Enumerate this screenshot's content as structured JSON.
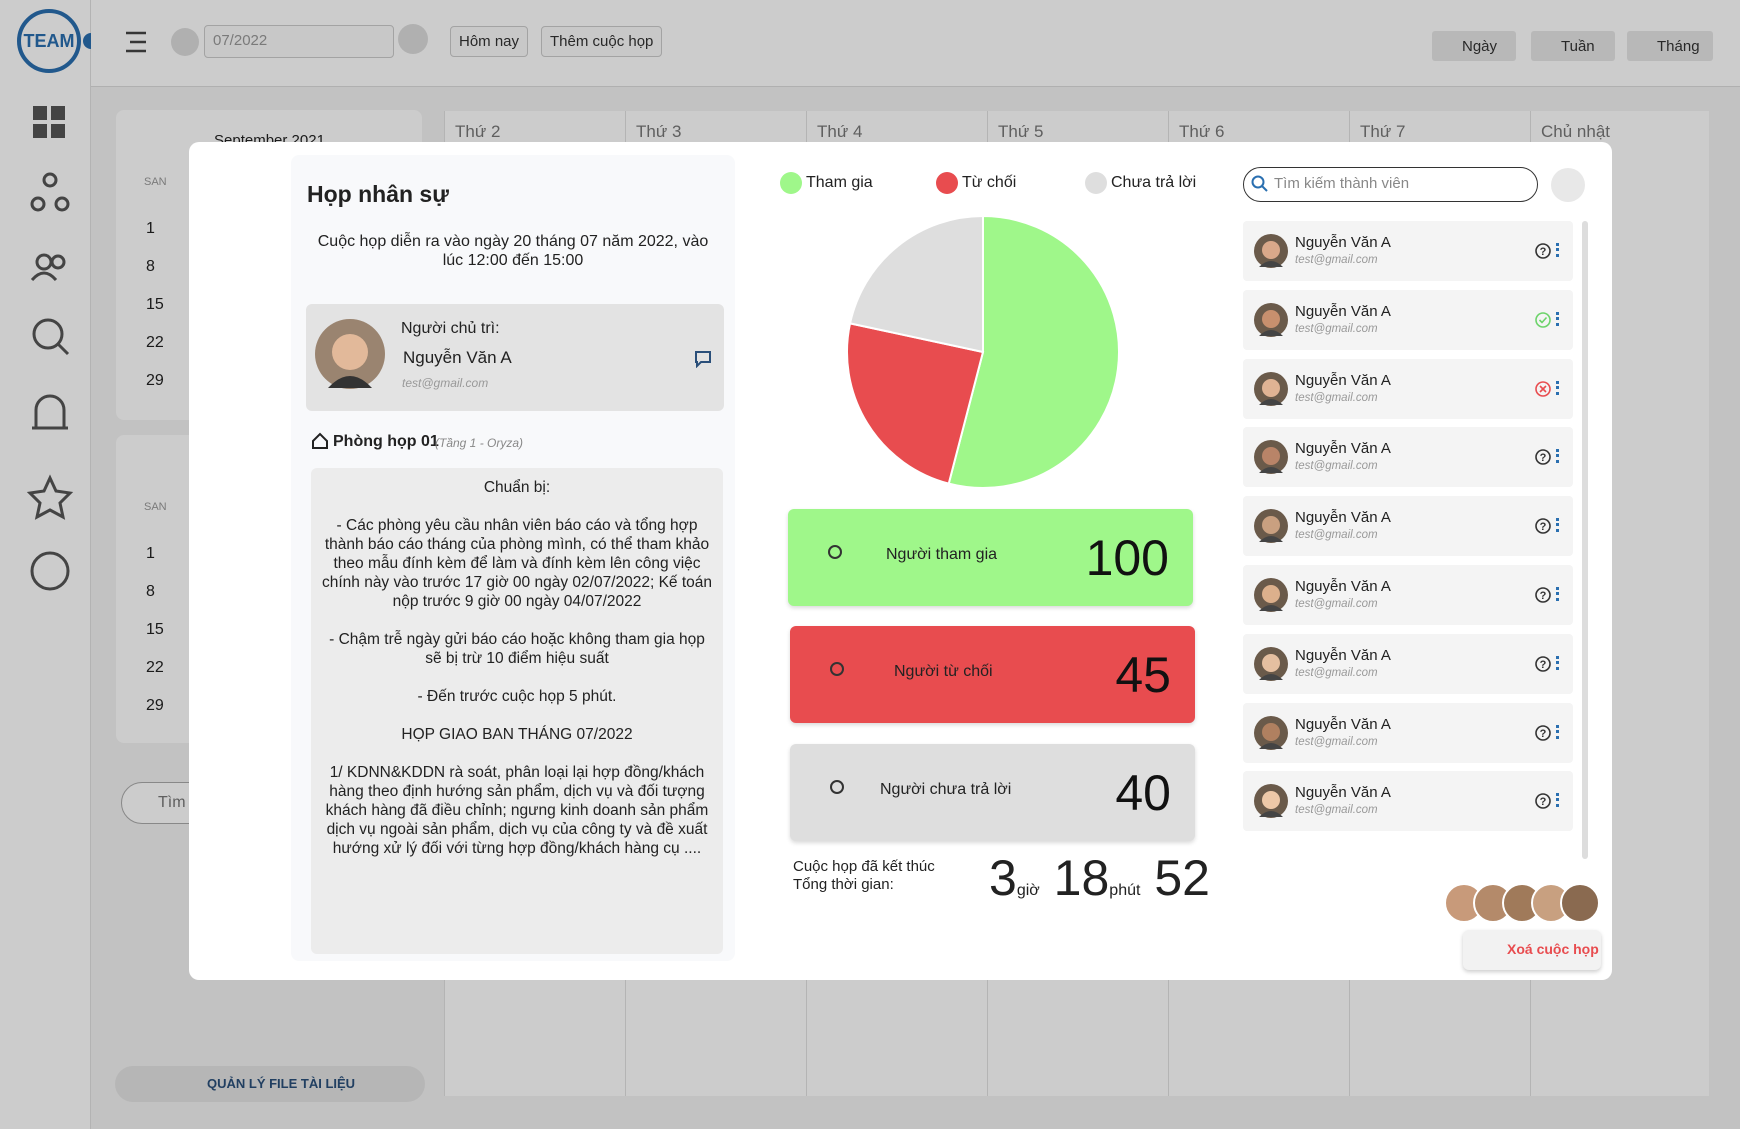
{
  "toolbar": {
    "date": "07/2022",
    "today": "Hôm nay",
    "add_meeting": "Thêm cuộc họp",
    "views": [
      "Ngày",
      "Tuần",
      "Tháng"
    ]
  },
  "calendar": {
    "weekdays": [
      "Thứ 2",
      "Thứ 3",
      "Thứ 4",
      "Thứ 5",
      "Thứ 6",
      "Thứ 7",
      "Chủ nhật"
    ],
    "mini_calendars": [
      {
        "month": "September 2021",
        "weekday": "SAN",
        "days": [
          1,
          8,
          15,
          22,
          29
        ]
      },
      {
        "weekday": "SAN",
        "days": [
          1,
          8,
          15,
          22,
          29
        ]
      }
    ],
    "search": "Tìm",
    "file_button": "QUẢN LÝ FILE TÀI LIỆU"
  },
  "meeting": {
    "title": "Họp nhân sự",
    "time": "Cuộc họp diễn ra vào ngày 20 tháng 07 năm 2022, vào lúc 12:00 đến 15:00",
    "host_label": "Người chủ trì:",
    "host_name": "Nguyễn Văn A",
    "host_email": "test@gmail.com",
    "room": "Phòng họp 01",
    "room_detail": "(Tầng 1 - Oryza)",
    "notes": [
      "Chuẩn bị:",
      "- Các phòng yêu cầu nhân viên báo cáo và tổng hợp thành báo cáo tháng của phòng mình, có thể tham khảo theo mẫu đính kèm để làm và đính kèm lên công việc chính này vào trước 17 giờ 00 ngày 02/07/2022; Kế toán nộp trước 9 giờ 00 ngày 04/07/2022",
      "- Chậm trễ ngày gửi báo cáo hoặc không tham gia họp sẽ bị trừ 10 điểm hiệu suất",
      "- Đến trước cuộc họp 5 phút.",
      "HỌP GIAO BAN THÁNG 07/2022",
      "1/ KDNN&KDDN rà soát, phân loại lại hợp đồng/khách hàng theo định hướng sản phẩm, dịch vụ và đối tượng khách hàng đã điều chỉnh; ngưng kinh doanh sản phẩm dịch vụ ngoài sản phẩm, dịch vụ của công ty và đề xuất hướng xử lý đối với từng hợp đồng/khách hàng cụ ...."
    ]
  },
  "chart_data": {
    "type": "pie",
    "categories": [
      "Tham gia",
      "Từ chối",
      "Chưa trả lời"
    ],
    "values": [
      100,
      45,
      40
    ],
    "colors": [
      "#9ff78a",
      "#e84c4f",
      "#dedede"
    ]
  },
  "stats": {
    "labels": [
      "Người tham gia",
      "Người từ chối",
      "Người chưa trả lời"
    ]
  },
  "duration": {
    "lines": [
      "Cuộc họp đã kết thúc",
      "Tổng thời gian:"
    ],
    "hours": 3,
    "hours_unit": "giờ",
    "minutes": 18,
    "minutes_unit": "phút",
    "seconds": 52
  },
  "members": {
    "search_placeholder": "Tìm kiếm thành viên",
    "list": [
      {
        "name": "Nguyễn Văn A",
        "email": "test@gmail.com",
        "status": "pending"
      },
      {
        "name": "Nguyễn Văn A",
        "email": "test@gmail.com",
        "status": "accepted"
      },
      {
        "name": "Nguyễn Văn A",
        "email": "test@gmail.com",
        "status": "declined"
      },
      {
        "name": "Nguyễn Văn A",
        "email": "test@gmail.com",
        "status": "pending"
      },
      {
        "name": "Nguyễn Văn A",
        "email": "test@gmail.com",
        "status": "pending"
      },
      {
        "name": "Nguyễn Văn A",
        "email": "test@gmail.com",
        "status": "pending"
      },
      {
        "name": "Nguyễn Văn A",
        "email": "test@gmail.com",
        "status": "pending"
      },
      {
        "name": "Nguyễn Văn A",
        "email": "test@gmail.com",
        "status": "pending"
      },
      {
        "name": "Nguyễn Văn A",
        "email": "test@gmail.com",
        "status": "pending"
      }
    ]
  },
  "delete": "Xoá cuộc họp"
}
